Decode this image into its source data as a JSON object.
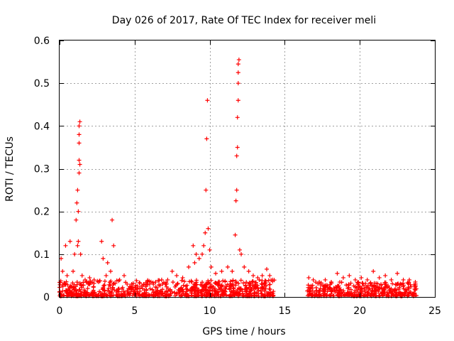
{
  "chart_data": {
    "type": "scatter",
    "title": "Day 026 of 2017, Rate Of TEC Index for receiver meli",
    "xlabel": "GPS time / hours",
    "ylabel": "ROTI / TECUs",
    "xlim": [
      0,
      25
    ],
    "ylim": [
      0,
      0.6
    ],
    "xticks": [
      0,
      5,
      10,
      15,
      20,
      25
    ],
    "xtick_labels": [
      "0",
      "5",
      "10",
      "15",
      "20",
      "25"
    ],
    "yticks": [
      0,
      0.1,
      0.2,
      0.3,
      0.4,
      0.5,
      0.6
    ],
    "ytick_labels": [
      "0",
      "0.1",
      "0.2",
      "0.3",
      "0.4",
      "0.5",
      "0.6"
    ],
    "grid": true,
    "marker": "+",
    "color": "#ff0000",
    "series": [
      {
        "name": "ROTI",
        "x": [
          0.1,
          0.2,
          0.4,
          0.5,
          0.7,
          0.9,
          1.0,
          1.1,
          1.15,
          1.2,
          1.2,
          1.25,
          1.25,
          1.3,
          1.3,
          1.3,
          1.3,
          1.3,
          1.35,
          1.35,
          1.4,
          1.5,
          1.7,
          2.0,
          2.3,
          2.6,
          2.8,
          2.9,
          3.1,
          3.2,
          3.4,
          3.5,
          3.6,
          4.0,
          4.3,
          4.5,
          4.8,
          5.2,
          5.6,
          6.0,
          6.4,
          6.8,
          7.2,
          7.5,
          7.8,
          8.2,
          8.6,
          8.9,
          9.0,
          9.1,
          9.3,
          9.5,
          9.6,
          9.7,
          9.75,
          9.8,
          9.85,
          9.9,
          10.0,
          10.1,
          10.4,
          10.8,
          11.2,
          11.5,
          11.7,
          11.75,
          11.8,
          11.8,
          11.85,
          11.85,
          11.9,
          11.9,
          11.9,
          11.9,
          11.95,
          12.0,
          12.1,
          12.3,
          12.6,
          12.9,
          13.2,
          13.5,
          13.8,
          14.0,
          14.2,
          16.6,
          16.9,
          17.3,
          17.7,
          18.1,
          18.5,
          18.9,
          19.3,
          19.7,
          20.1,
          20.5,
          20.9,
          21.3,
          21.7,
          22.1,
          22.5,
          22.9,
          23.3,
          23.7
        ],
        "y": [
          0.09,
          0.06,
          0.12,
          0.05,
          0.13,
          0.06,
          0.1,
          0.18,
          0.22,
          0.25,
          0.12,
          0.2,
          0.13,
          0.29,
          0.32,
          0.36,
          0.38,
          0.4,
          0.41,
          0.31,
          0.1,
          0.05,
          0.04,
          0.045,
          0.04,
          0.035,
          0.13,
          0.09,
          0.05,
          0.08,
          0.06,
          0.18,
          0.12,
          0.04,
          0.05,
          0.03,
          0.03,
          0.025,
          0.03,
          0.03,
          0.035,
          0.04,
          0.04,
          0.06,
          0.05,
          0.045,
          0.07,
          0.12,
          0.08,
          0.1,
          0.09,
          0.1,
          0.12,
          0.15,
          0.25,
          0.37,
          0.46,
          0.16,
          0.11,
          0.07,
          0.055,
          0.06,
          0.07,
          0.06,
          0.145,
          0.225,
          0.25,
          0.33,
          0.35,
          0.42,
          0.46,
          0.5,
          0.525,
          0.545,
          0.555,
          0.11,
          0.1,
          0.07,
          0.06,
          0.05,
          0.045,
          0.05,
          0.065,
          0.05,
          0.04,
          0.045,
          0.04,
          0.035,
          0.04,
          0.035,
          0.055,
          0.045,
          0.05,
          0.04,
          0.045,
          0.04,
          0.06,
          0.045,
          0.05,
          0.04,
          0.055,
          0.04,
          0.04,
          0.035
        ]
      }
    ],
    "dense_band": {
      "note": "dense background of low ROTI values",
      "segments": [
        {
          "x_range": [
            0,
            14.3
          ],
          "y_range": [
            0.002,
            0.04
          ]
        },
        {
          "x_range": [
            16.5,
            23.8
          ],
          "y_range": [
            0.002,
            0.035
          ]
        }
      ]
    }
  }
}
